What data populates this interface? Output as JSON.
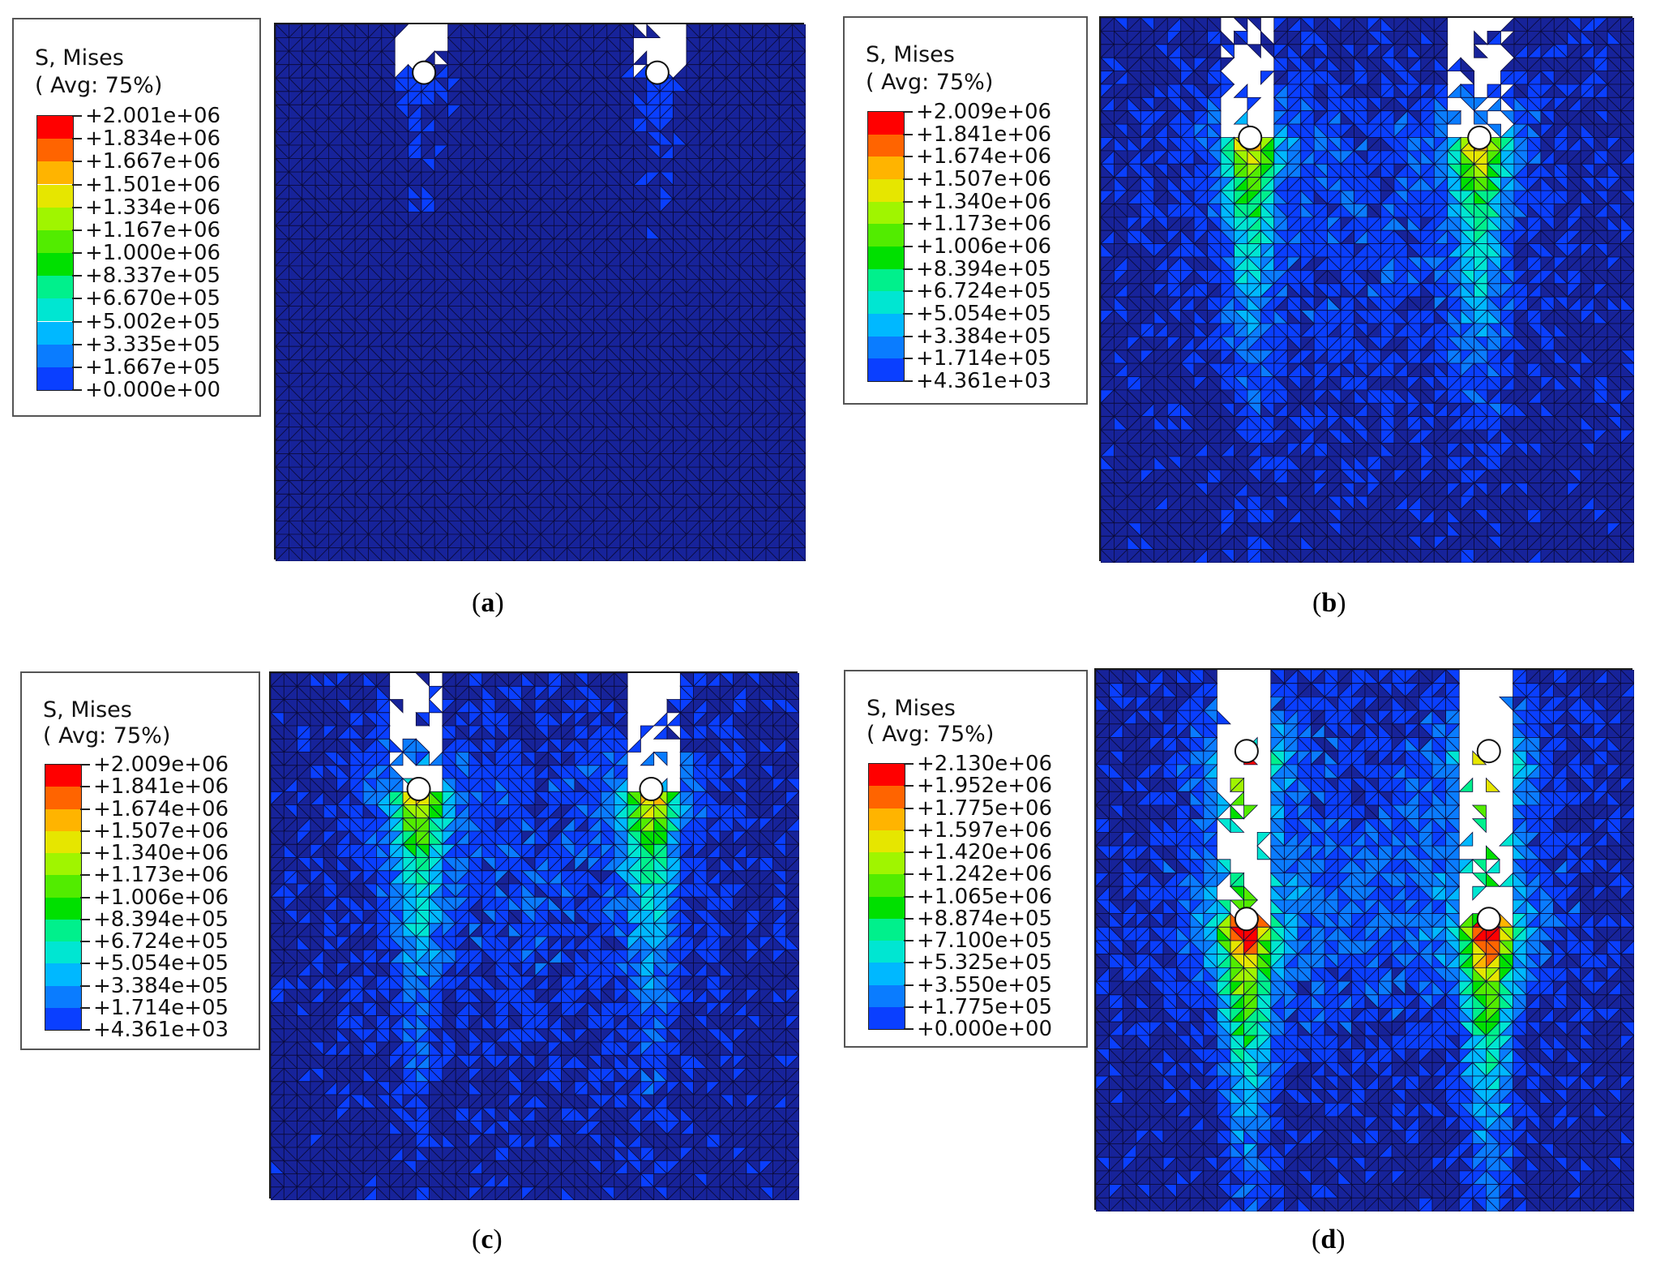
{
  "colors": {
    "scale": [
      "#0000ff",
      "#0a3fff",
      "#0a7cff",
      "#00b8ff",
      "#00e6d2",
      "#00f08c",
      "#00e000",
      "#52ec00",
      "#a0f500",
      "#e6e600",
      "#ffb400",
      "#ff6400",
      "#ff0000"
    ],
    "background_blue": "#17239a",
    "mesh_line": "#0b0b3a"
  },
  "panels": [
    {
      "id": "a",
      "caption": "a",
      "legend_title": "S, Mises",
      "legend_subtitle": "( Avg: 75%)",
      "legend_values": [
        "+2.001e+06",
        "+1.834e+06",
        "+1.667e+06",
        "+1.501e+06",
        "+1.334e+06",
        "+1.167e+06",
        "+1.000e+06",
        "+8.337e+05",
        "+6.670e+05",
        "+5.002e+05",
        "+3.335e+05",
        "+1.667e+05",
        "+0.000e+00"
      ],
      "holes": [
        {
          "u": 0.28,
          "v": 0.09
        },
        {
          "u": 0.72,
          "v": 0.09
        }
      ],
      "hole_rows": 1,
      "stress_level": 0.05,
      "crack_depth": 0.1
    },
    {
      "id": "b",
      "caption": "b",
      "legend_title": "S, Mises",
      "legend_subtitle": "( Avg: 75%)",
      "legend_values": [
        "+2.009e+06",
        "+1.841e+06",
        "+1.674e+06",
        "+1.507e+06",
        "+1.340e+06",
        "+1.173e+06",
        "+1.006e+06",
        "+8.394e+05",
        "+6.724e+05",
        "+5.054e+05",
        "+3.384e+05",
        "+1.714e+05",
        "+4.361e+03"
      ],
      "holes": [
        {
          "u": 0.28,
          "v": 0.22
        },
        {
          "u": 0.71,
          "v": 0.22
        }
      ],
      "hole_rows": 1,
      "stress_level": 0.35,
      "crack_depth": 0.23
    },
    {
      "id": "c",
      "caption": "c",
      "legend_title": "S, Mises",
      "legend_subtitle": "( Avg: 75%)",
      "legend_values": [
        "+2.009e+06",
        "+1.841e+06",
        "+1.674e+06",
        "+1.507e+06",
        "+1.340e+06",
        "+1.173e+06",
        "+1.006e+06",
        "+8.394e+05",
        "+6.724e+05",
        "+5.054e+05",
        "+3.384e+05",
        "+1.714e+05",
        "+4.361e+03"
      ],
      "holes": [
        {
          "u": 0.28,
          "v": 0.22
        },
        {
          "u": 0.72,
          "v": 0.22
        }
      ],
      "hole_rows": 1,
      "stress_level": 0.35,
      "crack_depth": 0.23
    },
    {
      "id": "d",
      "caption": "d",
      "legend_title": "S, Mises",
      "legend_subtitle": "( Avg: 75%)",
      "legend_values": [
        "+2.130e+06",
        "+1.952e+06",
        "+1.775e+06",
        "+1.597e+06",
        "+1.420e+06",
        "+1.242e+06",
        "+1.065e+06",
        "+8.874e+05",
        "+7.100e+05",
        "+5.325e+05",
        "+3.550e+05",
        "+1.775e+05",
        "+0.000e+00"
      ],
      "holes": [
        {
          "u": 0.28,
          "v": 0.46
        },
        {
          "u": 0.73,
          "v": 0.46
        },
        {
          "u": 0.28,
          "v": 0.15
        },
        {
          "u": 0.73,
          "v": 0.15
        }
      ],
      "hole_rows": 2,
      "stress_level": 0.4,
      "crack_depth": 0.47
    }
  ]
}
